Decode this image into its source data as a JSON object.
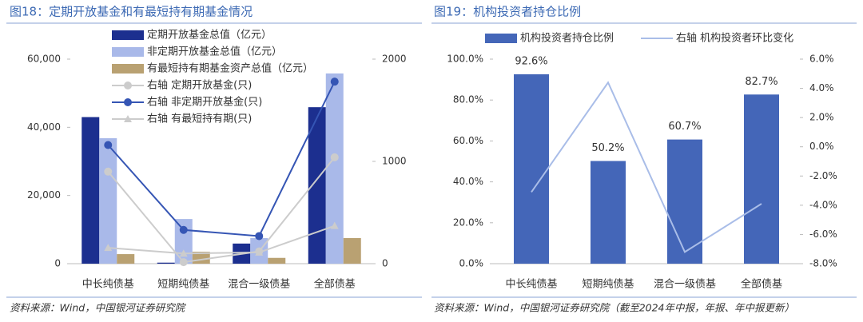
{
  "chart_data": [
    {
      "type": "bar",
      "title": "图18：定期开放基金和有最短持有期基金情况",
      "source": "资料来源：Wind，中国银河证券研究院",
      "categories": [
        "中长纯债基",
        "短期纯债基",
        "混合一级债基",
        "全部债基"
      ],
      "ylim": [
        0,
        60000
      ],
      "yticks": [
        0,
        {
          "value": 20000,
          "label": "20,000"
        },
        {
          "value": 40000,
          "label": "40,000"
        },
        {
          "value": 60000,
          "label": "60,000"
        }
      ],
      "y2lim": [
        0,
        2000
      ],
      "y2ticks": [
        0,
        1000,
        2000
      ],
      "series": [
        {
          "name": "定期开放基金总值（亿元）",
          "type": "bar",
          "color": "#1c2f8f",
          "values": [
            43000,
            300,
            5900,
            45900
          ]
        },
        {
          "name": "非定期开放基金总值（亿元）",
          "type": "bar",
          "color": "#a9b9e9",
          "values": [
            36800,
            13100,
            7500,
            55800
          ]
        },
        {
          "name": "有最短持有期基金资产总值（亿元）",
          "type": "bar",
          "color": "#b9a172",
          "values": [
            2800,
            3500,
            1700,
            7500
          ]
        },
        {
          "name": "右轴 定期开放基金(只)",
          "type": "line",
          "axis": "y2",
          "marker": "circle",
          "color": "#cccccc",
          "values": [
            900,
            15,
            120,
            1040
          ]
        },
        {
          "name": "右轴 非定期开放基金(只)",
          "type": "line",
          "axis": "y2",
          "marker": "circle",
          "color": "#3555b4",
          "values": [
            1160,
            330,
            270,
            1780
          ]
        },
        {
          "name": "右轴 有最短持有期(只)",
          "type": "line",
          "axis": "y2",
          "marker": "triangle",
          "color": "#cccccc",
          "values": [
            155,
            100,
            110,
            370
          ]
        }
      ]
    },
    {
      "type": "bar",
      "title": "图19：机构投资者持仓比例",
      "source": "资料来源：Wind，中国银河证券研究院（截至2024年中报，年报、年中报更新）",
      "categories": [
        "中长纯债基",
        "短期纯债基",
        "混合一级债基",
        "全部债基"
      ],
      "ylim": [
        0,
        100
      ],
      "yticks": [
        {
          "value": 0,
          "label": "0.0%"
        },
        {
          "value": 20,
          "label": "20.0%"
        },
        {
          "value": 40,
          "label": "40.0%"
        },
        {
          "value": 60,
          "label": "60.0%"
        },
        {
          "value": 80,
          "label": "80.0%"
        },
        {
          "value": 100,
          "label": "100.0%"
        }
      ],
      "y2lim": [
        -8,
        6
      ],
      "y2ticks": [
        {
          "value": -8,
          "label": "-8.0%"
        },
        {
          "value": -6,
          "label": "-6.0%"
        },
        {
          "value": -4,
          "label": "-4.0%"
        },
        {
          "value": -2,
          "label": "-2.0%"
        },
        {
          "value": 0,
          "label": "0.0%"
        },
        {
          "value": 2,
          "label": "2.0%"
        },
        {
          "value": 4,
          "label": "4.0%"
        },
        {
          "value": 6,
          "label": "6.0%"
        }
      ],
      "series": [
        {
          "name": "机构投资者持仓比例",
          "type": "bar",
          "color": "#4466b8",
          "values": [
            92.6,
            50.2,
            60.7,
            82.7
          ],
          "value_labels": [
            "92.6%",
            "50.2%",
            "60.7%",
            "82.7%"
          ]
        },
        {
          "name": "右轴 机构投资者环比变化",
          "type": "line",
          "axis": "y2",
          "color": "#a9bde8",
          "values": [
            -3.1,
            4.4,
            -7.2,
            -3.9
          ]
        }
      ]
    }
  ]
}
